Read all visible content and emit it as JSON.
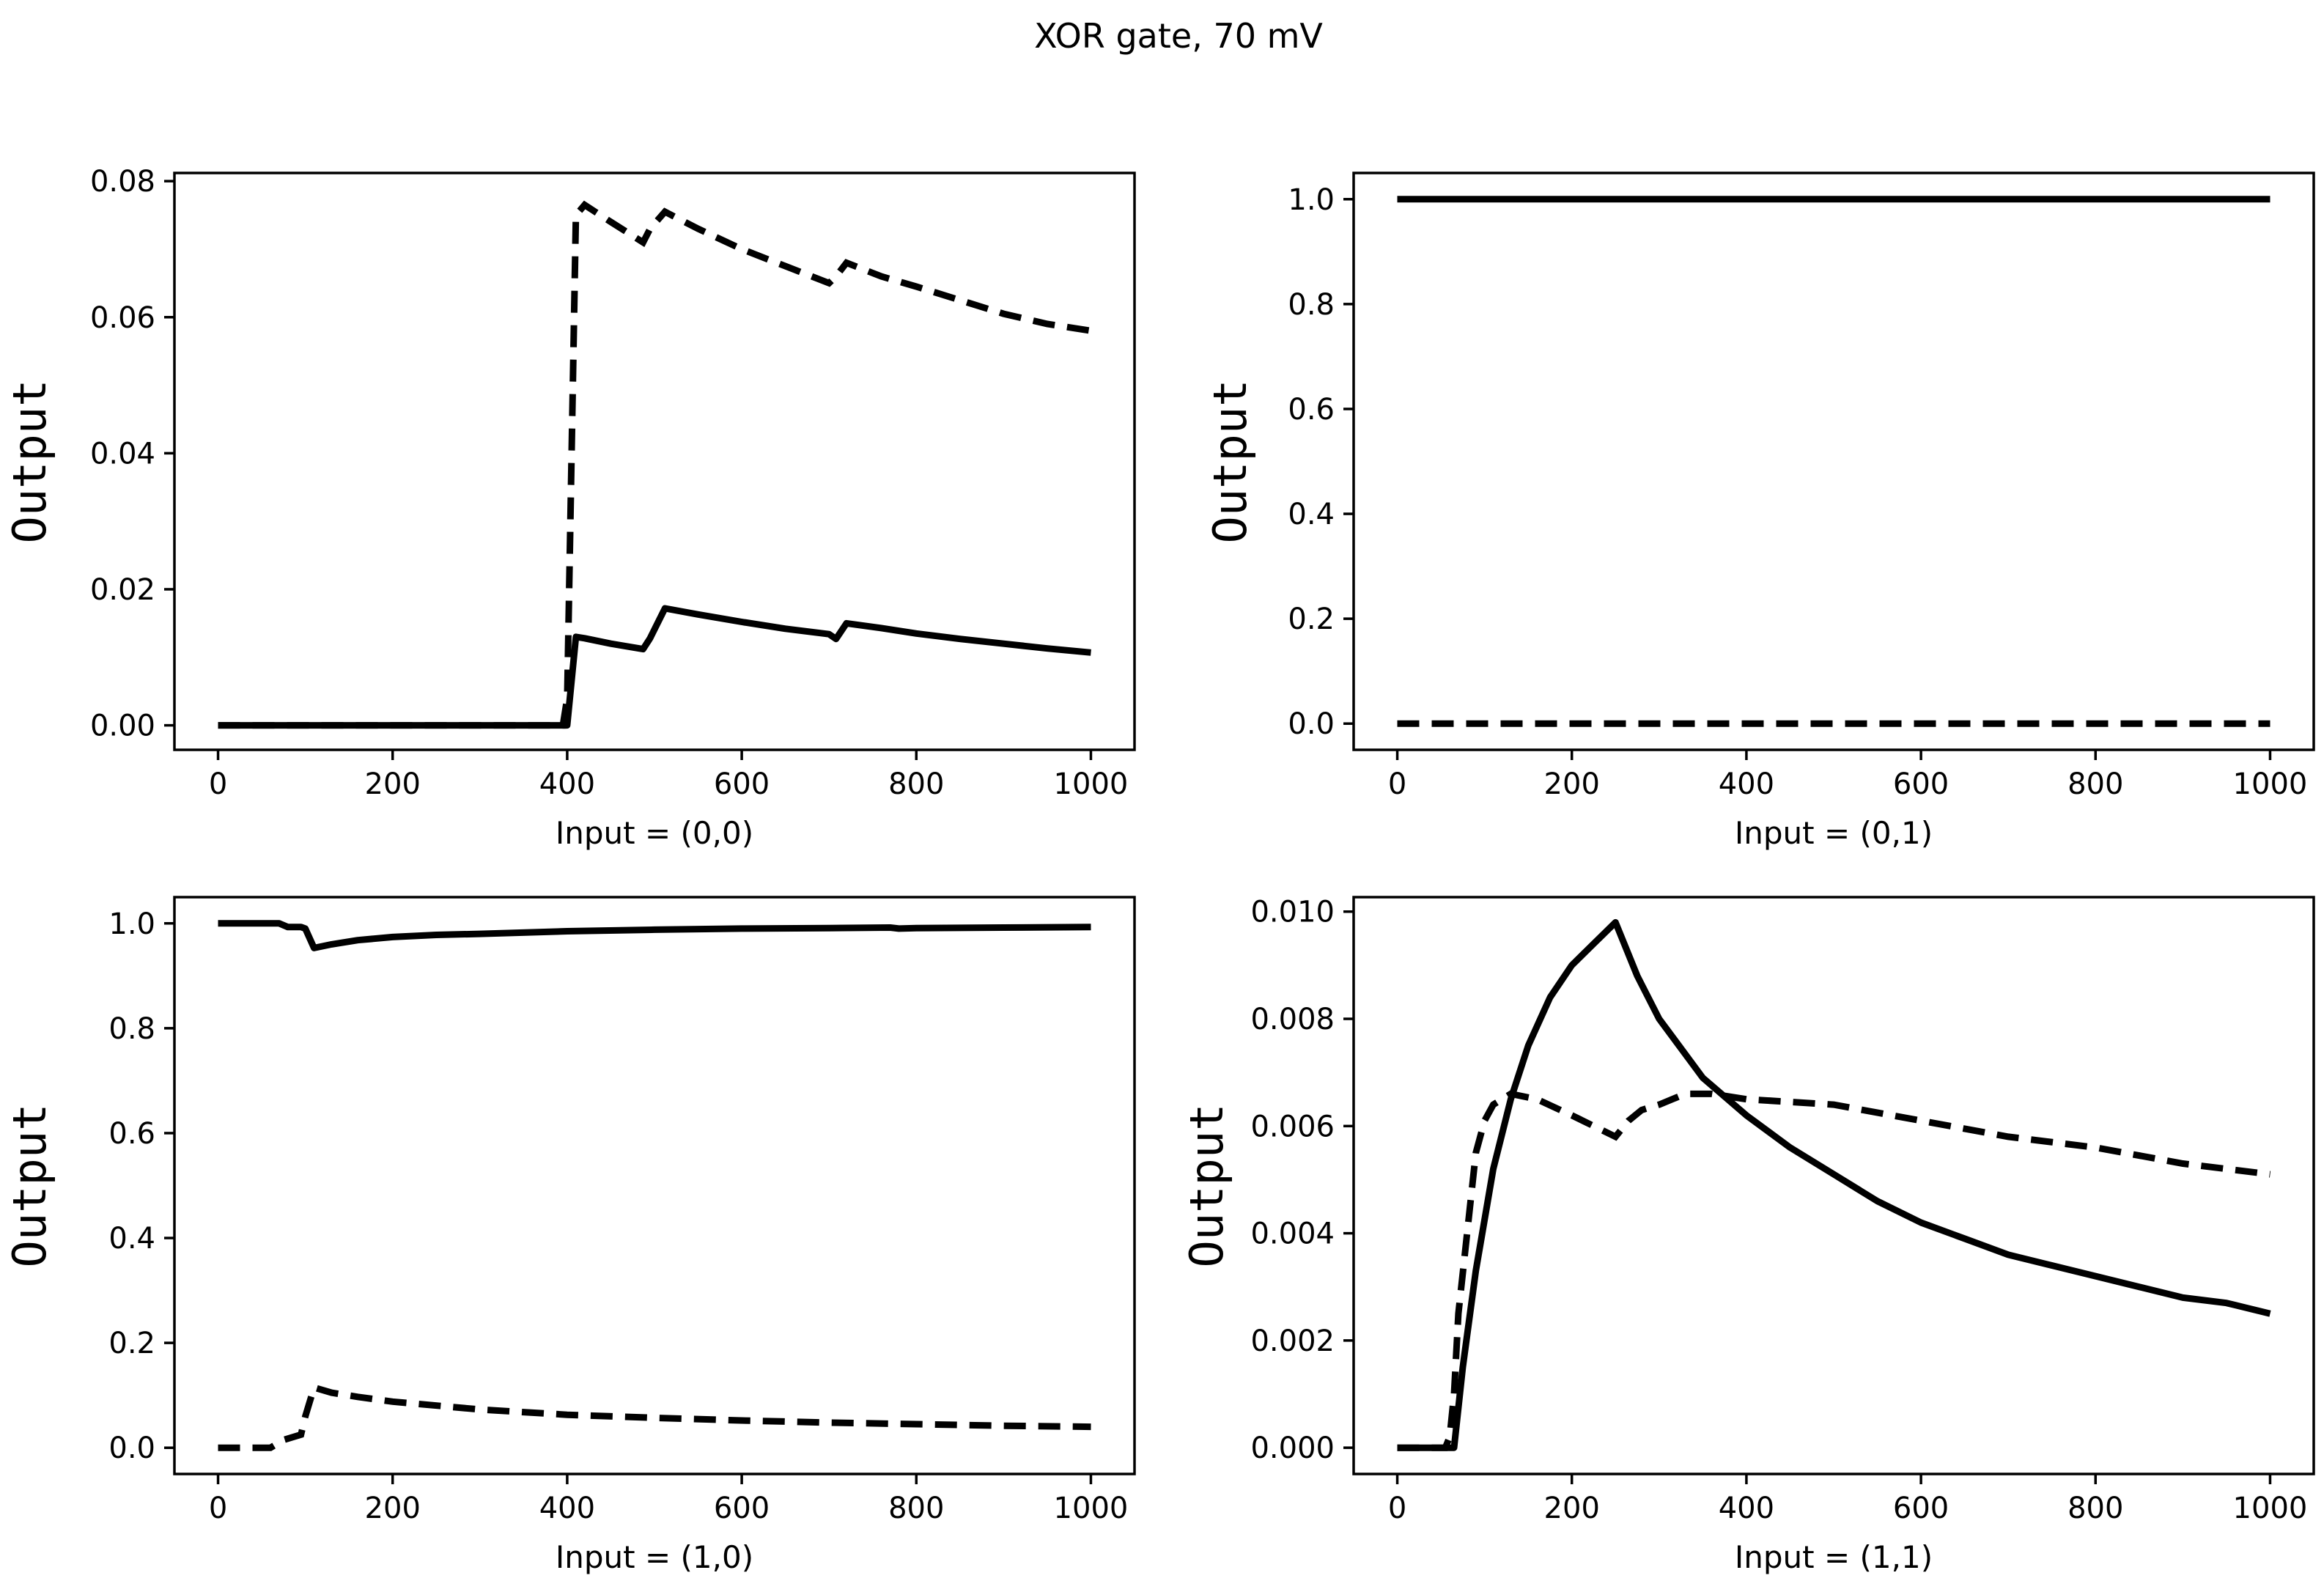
{
  "suptitle": "XOR gate, 70 mV",
  "chart_data": [
    {
      "type": "line",
      "xlabel": "Input = (0,0)",
      "ylabel": "Output",
      "xlim": [
        -50,
        1050
      ],
      "ylim": [
        -0.0036,
        0.0812
      ],
      "xticks": [
        0,
        200,
        400,
        600,
        800,
        1000
      ],
      "xtick_labels": [
        "0",
        "200",
        "400",
        "600",
        "800",
        "1000"
      ],
      "yticks": [
        0,
        0.02,
        0.04,
        0.06,
        0.08
      ],
      "ytick_labels": [
        "0.00",
        "0.02",
        "0.04",
        "0.06",
        "0.08"
      ],
      "series": [
        {
          "name": "solid",
          "style": "solid",
          "x": [
            0,
            400,
            410,
            420,
            450,
            487,
            495,
            512,
            550,
            600,
            650,
            700,
            708,
            720,
            760,
            800,
            850,
            900,
            950,
            1000
          ],
          "y": [
            0,
            0,
            0.013,
            0.0128,
            0.012,
            0.0112,
            0.0128,
            0.0172,
            0.0163,
            0.0152,
            0.0142,
            0.0134,
            0.0127,
            0.015,
            0.0143,
            0.0135,
            0.0127,
            0.012,
            0.0113,
            0.0107
          ]
        },
        {
          "name": "dashed",
          "style": "dashed",
          "x": [
            0,
            395,
            400,
            410,
            420,
            450,
            487,
            495,
            512,
            550,
            600,
            650,
            700,
            708,
            720,
            760,
            800,
            850,
            900,
            950,
            1000
          ],
          "y": [
            0,
            0,
            0.004,
            0.075,
            0.0765,
            0.074,
            0.071,
            0.073,
            0.0755,
            0.073,
            0.07,
            0.0675,
            0.065,
            0.066,
            0.068,
            0.066,
            0.0645,
            0.0625,
            0.0605,
            0.059,
            0.058
          ]
        }
      ]
    },
    {
      "type": "line",
      "xlabel": "Input = (0,1)",
      "ylabel": "Output",
      "xlim": [
        -50,
        1050
      ],
      "ylim": [
        -0.05,
        1.05
      ],
      "xticks": [
        0,
        200,
        400,
        600,
        800,
        1000
      ],
      "xtick_labels": [
        "0",
        "200",
        "400",
        "600",
        "800",
        "1000"
      ],
      "yticks": [
        0,
        0.2,
        0.4,
        0.6,
        0.8,
        1.0
      ],
      "ytick_labels": [
        "0.0",
        "0.2",
        "0.4",
        "0.6",
        "0.8",
        "1.0"
      ],
      "series": [
        {
          "name": "solid",
          "style": "solid",
          "x": [
            0,
            1000
          ],
          "y": [
            1.0,
            1.0
          ]
        },
        {
          "name": "dashed",
          "style": "dashed",
          "x": [
            0,
            1000
          ],
          "y": [
            0.0,
            0.0
          ]
        }
      ]
    },
    {
      "type": "line",
      "xlabel": "Input = (1,0)",
      "ylabel": "Output",
      "xlim": [
        -50,
        1050
      ],
      "ylim": [
        -0.05,
        1.05
      ],
      "xticks": [
        0,
        200,
        400,
        600,
        800,
        1000
      ],
      "xtick_labels": [
        "0",
        "200",
        "400",
        "600",
        "800",
        "1000"
      ],
      "yticks": [
        0,
        0.2,
        0.4,
        0.6,
        0.8,
        1.0
      ],
      "ytick_labels": [
        "0.0",
        "0.2",
        "0.4",
        "0.6",
        "0.8",
        "1.0"
      ],
      "series": [
        {
          "name": "solid",
          "style": "solid",
          "x": [
            0,
            70,
            80,
            95,
            100,
            110,
            130,
            160,
            200,
            250,
            300,
            400,
            500,
            600,
            700,
            770,
            780,
            800,
            900,
            1000
          ],
          "y": [
            1.0,
            1.0,
            0.993,
            0.993,
            0.99,
            0.953,
            0.96,
            0.968,
            0.974,
            0.978,
            0.98,
            0.985,
            0.988,
            0.99,
            0.991,
            0.992,
            0.99,
            0.991,
            0.992,
            0.993
          ]
        },
        {
          "name": "dashed",
          "style": "dashed",
          "x": [
            0,
            60,
            75,
            95,
            100,
            110,
            130,
            160,
            200,
            300,
            400,
            500,
            600,
            700,
            800,
            900,
            1000
          ],
          "y": [
            0,
            0,
            0.015,
            0.025,
            0.06,
            0.115,
            0.105,
            0.097,
            0.088,
            0.073,
            0.063,
            0.057,
            0.052,
            0.048,
            0.045,
            0.042,
            0.04
          ]
        }
      ]
    },
    {
      "type": "line",
      "xlabel": "Input = (1,1)",
      "ylabel": "Output",
      "xlim": [
        -50,
        1050
      ],
      "ylim": [
        -0.00049,
        0.01027
      ],
      "xticks": [
        0,
        200,
        400,
        600,
        800,
        1000
      ],
      "xtick_labels": [
        "0",
        "200",
        "400",
        "600",
        "800",
        "1000"
      ],
      "yticks": [
        0,
        0.002,
        0.004,
        0.006,
        0.008,
        0.01
      ],
      "ytick_labels": [
        "0.000",
        "0.002",
        "0.004",
        "0.006",
        "0.008",
        "0.010"
      ],
      "series": [
        {
          "name": "solid",
          "style": "solid",
          "x": [
            0,
            65,
            75,
            90,
            110,
            130,
            150,
            175,
            200,
            225,
            250,
            275,
            300,
            350,
            400,
            450,
            500,
            550,
            600,
            650,
            700,
            750,
            800,
            850,
            900,
            950,
            1000
          ],
          "y": [
            0,
            0,
            0.0015,
            0.0033,
            0.0052,
            0.0065,
            0.0075,
            0.0084,
            0.009,
            0.0094,
            0.0098,
            0.0088,
            0.008,
            0.0069,
            0.0062,
            0.0056,
            0.0051,
            0.0046,
            0.0042,
            0.0039,
            0.0036,
            0.0034,
            0.0032,
            0.003,
            0.0028,
            0.0027,
            0.0025
          ]
        },
        {
          "name": "dashed",
          "style": "dashed",
          "x": [
            0,
            55,
            60,
            65,
            70,
            80,
            90,
            100,
            110,
            130,
            160,
            200,
            250,
            265,
            280,
            300,
            330,
            360,
            400,
            500,
            600,
            700,
            800,
            900,
            1000
          ],
          "y": [
            0,
            0,
            0.0002,
            0.001,
            0.0025,
            0.004,
            0.0055,
            0.0061,
            0.0064,
            0.0066,
            0.0065,
            0.0062,
            0.0058,
            0.0061,
            0.0063,
            0.0064,
            0.0066,
            0.0066,
            0.0065,
            0.0064,
            0.0061,
            0.0058,
            0.0056,
            0.0053,
            0.0051
          ]
        }
      ]
    }
  ]
}
